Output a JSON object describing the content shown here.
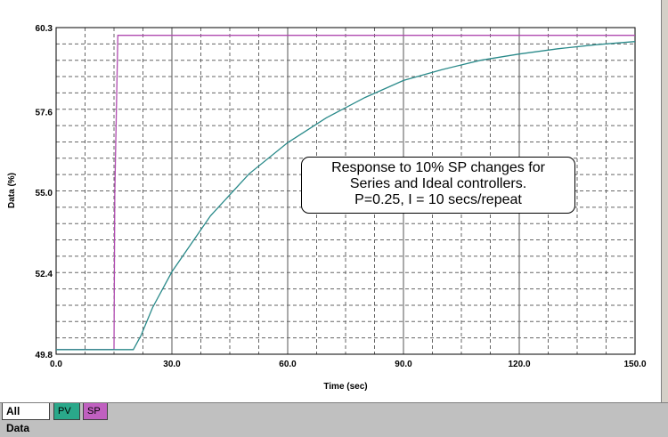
{
  "chart_data": {
    "type": "line",
    "xlabel": "Time (sec)",
    "ylabel": "Data (%)",
    "xlim": [
      0,
      150
    ],
    "ylim": [
      49.8,
      60.3
    ],
    "x_ticks": [
      "0.0",
      "30.0",
      "60.0",
      "90.0",
      "120.0",
      "150.0"
    ],
    "y_ticks": [
      "49.8",
      "52.4",
      "55.0",
      "57.6",
      "60.3"
    ],
    "grid": true,
    "annotation": [
      "Response to 10% SP changes for",
      "Series and Ideal controllers.",
      "P=0.25, I = 10 secs/repeat"
    ],
    "series": [
      {
        "name": "SP",
        "color": "#b04ab0",
        "x": [
          0,
          15,
          15.2,
          16,
          150
        ],
        "y": [
          49.95,
          49.95,
          55.0,
          60.05,
          60.05
        ]
      },
      {
        "name": "PV",
        "color": "#2a8a8a",
        "x": [
          0,
          20,
          22,
          25,
          30,
          40,
          50,
          60,
          70,
          80,
          90,
          100,
          110,
          120,
          130,
          140,
          150
        ],
        "y": [
          49.95,
          49.95,
          50.4,
          51.3,
          52.45,
          54.25,
          55.6,
          56.6,
          57.4,
          58.05,
          58.6,
          58.95,
          59.25,
          59.45,
          59.62,
          59.75,
          59.85
        ]
      }
    ]
  },
  "tabs": [
    {
      "label": "All Data",
      "color": "#ffffff"
    },
    {
      "label": "PV",
      "color": "#2aa88a"
    },
    {
      "label": "SP",
      "color": "#c060c0"
    }
  ]
}
